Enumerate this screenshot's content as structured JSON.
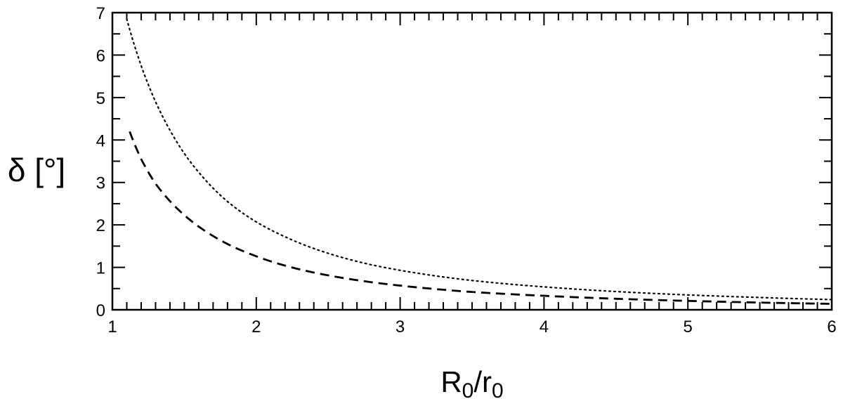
{
  "chart_data": {
    "type": "line",
    "title": "",
    "xlabel": {
      "main": "R",
      "sub1": "0",
      "mid": "/r",
      "sub2": "0"
    },
    "ylabel": "δ [°]",
    "xlim": [
      1,
      6
    ],
    "ylim": [
      0,
      7
    ],
    "x_ticks": [
      "1",
      "2",
      "3",
      "4",
      "5",
      "6"
    ],
    "y_ticks": [
      "0",
      "1",
      "2",
      "3",
      "4",
      "5",
      "6",
      "7"
    ],
    "x_minor_step": 0.1,
    "y_minor_step": 0.5,
    "grid": false,
    "legend": "none",
    "series": [
      {
        "style": "dotted",
        "color": "#000000",
        "x": [
          1.1,
          1.2,
          1.3,
          1.4,
          1.5,
          1.6,
          1.8,
          2.0,
          2.2,
          2.5,
          2.8,
          3.0,
          3.5,
          4.0,
          4.5,
          5.0,
          5.5,
          6.0
        ],
        "y": [
          6.85,
          5.75,
          4.9,
          4.23,
          3.68,
          3.24,
          2.55,
          2.07,
          1.72,
          1.33,
          1.06,
          0.93,
          0.69,
          0.54,
          0.43,
          0.35,
          0.29,
          0.24
        ]
      },
      {
        "style": "dashed",
        "color": "#000000",
        "x": [
          1.12,
          1.2,
          1.3,
          1.4,
          1.5,
          1.6,
          1.8,
          2.0,
          2.2,
          2.5,
          2.8,
          3.0,
          3.5,
          4.0,
          4.5,
          5.0,
          5.5,
          6.0
        ],
        "y": [
          4.2,
          3.55,
          2.97,
          2.56,
          2.23,
          1.96,
          1.55,
          1.26,
          1.04,
          0.81,
          0.65,
          0.57,
          0.42,
          0.33,
          0.26,
          0.21,
          0.17,
          0.14
        ]
      }
    ]
  }
}
